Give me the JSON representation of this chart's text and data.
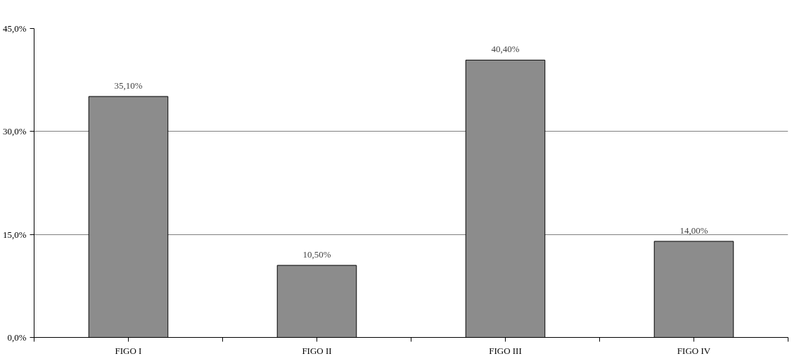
{
  "chart_data": {
    "type": "bar",
    "categories": [
      "FIGO I",
      "FIGO II",
      "FIGO III",
      "FIGO IV"
    ],
    "values": [
      35.1,
      10.5,
      40.4,
      14.0
    ],
    "value_labels": [
      "35,10%",
      "10,50%",
      "40,40%",
      "14,00%"
    ],
    "color": "#8c8c8c",
    "ylim": [
      0,
      45
    ],
    "yticks": [
      {
        "value": 0,
        "label": "0,0%"
      },
      {
        "value": 15,
        "label": "15,0%"
      },
      {
        "value": 30,
        "label": "30,0%"
      },
      {
        "value": 45,
        "label": "45,0%"
      }
    ],
    "grid": "y"
  }
}
